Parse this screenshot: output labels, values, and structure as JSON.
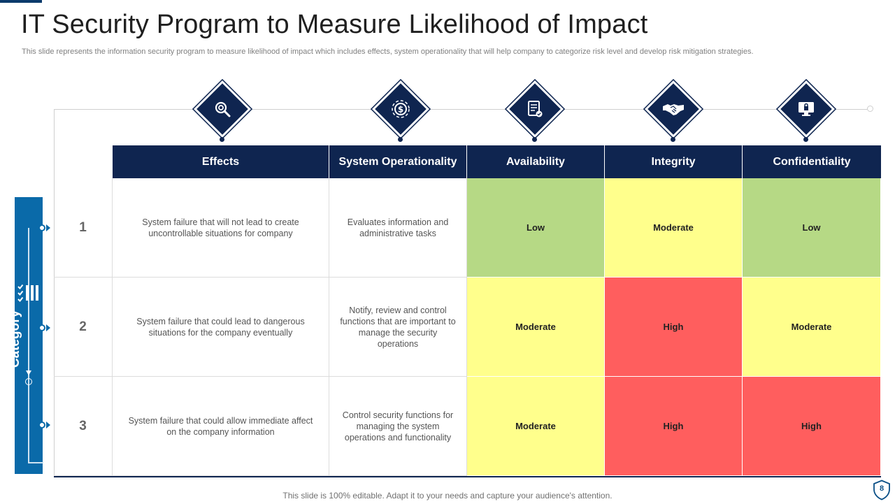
{
  "title": "IT Security Program to Measure Likelihood of Impact",
  "subtitle": "This slide represents the information security program to measure likelihood of impact which includes effects, system operationality that will help company to categorize risk level and develop risk mitigation strategies.",
  "category_label": "Category",
  "columns": [
    "Effects",
    "System Operationality",
    "Availability",
    "Integrity",
    "Confidentiality"
  ],
  "icons": [
    "magnifier-gear-icon",
    "dollar-gear-icon",
    "document-check-icon",
    "handshake-icon",
    "lock-monitor-icon"
  ],
  "rows": [
    {
      "num": "1",
      "effect": "System failure that will not lead to create uncontrollable situations for company",
      "operationality": "Evaluates information and administrative tasks",
      "availability": "Low",
      "integrity": "Moderate",
      "confidentiality": "Low"
    },
    {
      "num": "2",
      "effect": "System failure that could lead to dangerous situations for the company eventually",
      "operationality": "Notify, review and control functions that are important to manage the security operations",
      "availability": "Moderate",
      "integrity": "High",
      "confidentiality": "Moderate"
    },
    {
      "num": "3",
      "effect": "System failure that could allow immediate affect on the company information",
      "operationality": "Control security functions for managing the system operations and functionality",
      "availability": "Moderate",
      "integrity": "High",
      "confidentiality": "High"
    }
  ],
  "rating_colors": {
    "Low": "#b6d985",
    "Moderate": "#ffff8c",
    "High": "#ff5e5e"
  },
  "colors": {
    "header": "#0f2550",
    "accent": "#0a6aa9"
  },
  "footer": "This slide is 100% editable. Adapt it to your needs and capture your audience's attention.",
  "page_number": "8"
}
